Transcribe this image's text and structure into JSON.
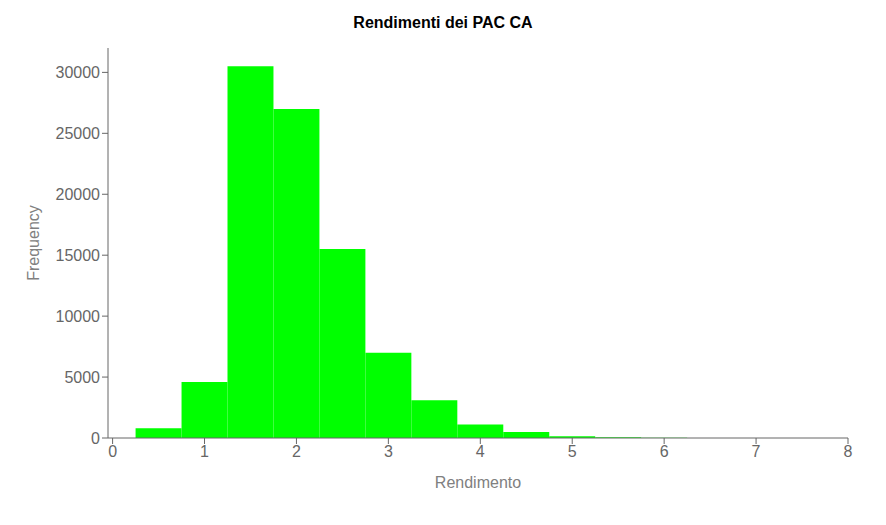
{
  "chart_data": {
    "type": "histogram",
    "title": "Rendimenti dei PAC CA",
    "xlabel": "Rendimento",
    "ylabel": "Frequency",
    "bins": [
      0.25,
      0.75,
      1.25,
      1.75,
      2.25,
      2.75,
      3.25,
      3.75,
      4.25,
      4.75,
      5.25,
      5.75,
      6.25,
      6.75,
      7.25
    ],
    "values": [
      800,
      4600,
      30500,
      27000,
      15500,
      7000,
      3100,
      1100,
      500,
      150,
      60,
      20,
      8,
      3
    ],
    "color": "#00FF00",
    "xlim": [
      -0.05,
      8.0
    ],
    "ylim": [
      0,
      32000
    ],
    "xticks": [
      0,
      1,
      2,
      3,
      4,
      5,
      6,
      7,
      8
    ],
    "yticks": [
      0,
      5000,
      10000,
      15000,
      20000,
      25000,
      30000
    ]
  }
}
